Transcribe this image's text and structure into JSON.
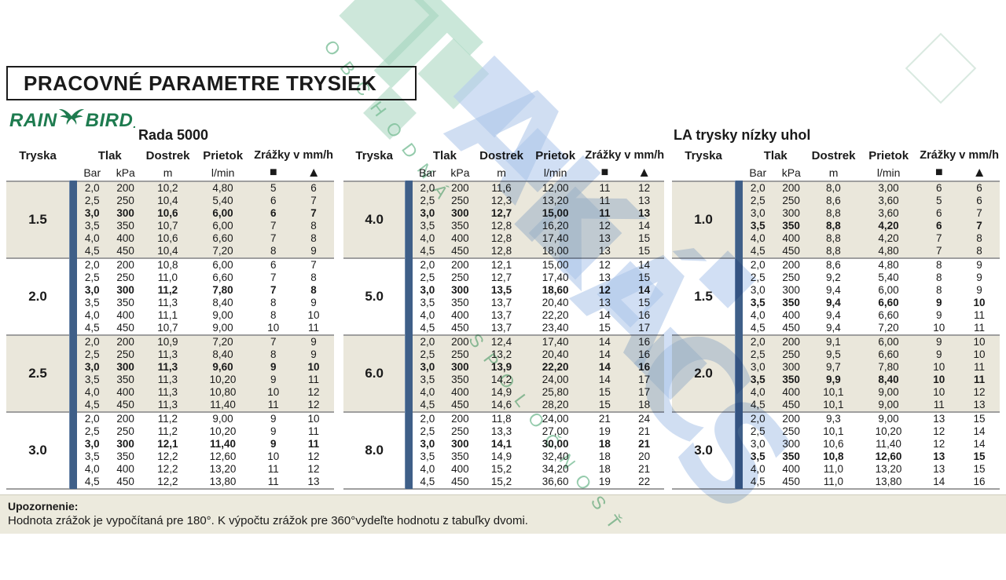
{
  "page": {
    "title": "PRACOVNÉ PARAMETRE TRYSIEK",
    "brand": {
      "word1": "RAIN",
      "word2": "BIRD",
      "dot": ".",
      "color": "#1e7b4f"
    },
    "notice": {
      "label": "Upozornenie:",
      "text": "Hodnota zrážok je vypočítaná pre 180°. K výpočtu zrážok pre 360°vydeľte hodnotu z tabuľky dvomi."
    }
  },
  "columns": {
    "tryska": "Tryska",
    "tlak": "Tlak",
    "bar": "Bar",
    "kpa": "kPa",
    "dostrek": "Dostrek",
    "m": "m",
    "prietok": "Prietok",
    "lmin": "l/min",
    "zrazky": "Zrážky v mm/h",
    "square": "■",
    "triangle": "▲"
  },
  "colors": {
    "stripe": "#3f5f88",
    "group_beige": "#eae7db",
    "separator": "#9f9f9f",
    "notice_bg": "#eceadd",
    "brand_green": "#1e7b4f",
    "watermark_teal": "#aed9c4",
    "watermark_blue": "#b5cbed",
    "watermark_green_text": "#7bbf98"
  },
  "tables": [
    {
      "title": "Rada 5000",
      "groups": [
        {
          "nozzle": "1.5",
          "bold_row": 2,
          "rows": [
            [
              "2,0",
              "200",
              "10,2",
              "4,80",
              "5",
              "6"
            ],
            [
              "2,5",
              "250",
              "10,4",
              "5,40",
              "6",
              "7"
            ],
            [
              "3,0",
              "300",
              "10,6",
              "6,00",
              "6",
              "7"
            ],
            [
              "3,5",
              "350",
              "10,7",
              "6,00",
              "7",
              "8"
            ],
            [
              "4,0",
              "400",
              "10,6",
              "6,60",
              "7",
              "8"
            ],
            [
              "4,5",
              "450",
              "10,4",
              "7,20",
              "8",
              "9"
            ]
          ]
        },
        {
          "nozzle": "2.0",
          "bold_row": 2,
          "rows": [
            [
              "2,0",
              "200",
              "10,8",
              "6,00",
              "6",
              "7"
            ],
            [
              "2,5",
              "250",
              "11,0",
              "6,60",
              "7",
              "8"
            ],
            [
              "3,0",
              "300",
              "11,2",
              "7,80",
              "7",
              "8"
            ],
            [
              "3,5",
              "350",
              "11,3",
              "8,40",
              "8",
              "9"
            ],
            [
              "4,0",
              "400",
              "11,1",
              "9,00",
              "8",
              "10"
            ],
            [
              "4,5",
              "450",
              "10,7",
              "9,00",
              "10",
              "11"
            ]
          ]
        },
        {
          "nozzle": "2.5",
          "bold_row": 2,
          "rows": [
            [
              "2,0",
              "200",
              "10,9",
              "7,20",
              "7",
              "9"
            ],
            [
              "2,5",
              "250",
              "11,3",
              "8,40",
              "8",
              "9"
            ],
            [
              "3,0",
              "300",
              "11,3",
              "9,60",
              "9",
              "10"
            ],
            [
              "3,5",
              "350",
              "11,3",
              "10,20",
              "9",
              "11"
            ],
            [
              "4,0",
              "400",
              "11,3",
              "10,80",
              "10",
              "12"
            ],
            [
              "4,5",
              "450",
              "11,3",
              "11,40",
              "11",
              "12"
            ]
          ]
        },
        {
          "nozzle": "3.0",
          "bold_row": 2,
          "rows": [
            [
              "2,0",
              "200",
              "11,2",
              "9,00",
              "9",
              "10"
            ],
            [
              "2,5",
              "250",
              "11,2",
              "10,20",
              "9",
              "11"
            ],
            [
              "3,0",
              "300",
              "12,1",
              "11,40",
              "9",
              "11"
            ],
            [
              "3,5",
              "350",
              "12,2",
              "12,60",
              "10",
              "12"
            ],
            [
              "4,0",
              "400",
              "12,2",
              "13,20",
              "11",
              "12"
            ],
            [
              "4,5",
              "450",
              "12,2",
              "13,80",
              "11",
              "13"
            ]
          ]
        }
      ]
    },
    {
      "title": "",
      "groups": [
        {
          "nozzle": "4.0",
          "bold_row": 2,
          "rows": [
            [
              "2,0",
              "200",
              "11,6",
              "12,00",
              "11",
              "12"
            ],
            [
              "2,5",
              "250",
              "12,3",
              "13,20",
              "11",
              "13"
            ],
            [
              "3,0",
              "300",
              "12,7",
              "15,00",
              "11",
              "13"
            ],
            [
              "3,5",
              "350",
              "12,8",
              "16,20",
              "12",
              "14"
            ],
            [
              "4,0",
              "400",
              "12,8",
              "17,40",
              "13",
              "15"
            ],
            [
              "4,5",
              "450",
              "12,8",
              "18,00",
              "13",
              "15"
            ]
          ]
        },
        {
          "nozzle": "5.0",
          "bold_row": 2,
          "rows": [
            [
              "2,0",
              "200",
              "12,1",
              "15,00",
              "12",
              "14"
            ],
            [
              "2,5",
              "250",
              "12,7",
              "17,40",
              "13",
              "15"
            ],
            [
              "3,0",
              "300",
              "13,5",
              "18,60",
              "12",
              "14"
            ],
            [
              "3,5",
              "350",
              "13,7",
              "20,40",
              "13",
              "15"
            ],
            [
              "4,0",
              "400",
              "13,7",
              "22,20",
              "14",
              "16"
            ],
            [
              "4,5",
              "450",
              "13,7",
              "23,40",
              "15",
              "17"
            ]
          ]
        },
        {
          "nozzle": "6.0",
          "bold_row": 2,
          "rows": [
            [
              "2,0",
              "200",
              "12,4",
              "17,40",
              "14",
              "16"
            ],
            [
              "2,5",
              "250",
              "13,2",
              "20,40",
              "14",
              "16"
            ],
            [
              "3,0",
              "300",
              "13,9",
              "22,20",
              "14",
              "16"
            ],
            [
              "3,5",
              "350",
              "14,2",
              "24,00",
              "14",
              "17"
            ],
            [
              "4,0",
              "400",
              "14,9",
              "25,80",
              "15",
              "17"
            ],
            [
              "4,5",
              "450",
              "14,6",
              "28,20",
              "15",
              "18"
            ]
          ]
        },
        {
          "nozzle": "8.0",
          "bold_row": 2,
          "rows": [
            [
              "2,0",
              "200",
              "11,8",
              "24,00",
              "21",
              "24"
            ],
            [
              "2,5",
              "250",
              "13,3",
              "27,00",
              "19",
              "21"
            ],
            [
              "3,0",
              "300",
              "14,1",
              "30,00",
              "18",
              "21"
            ],
            [
              "3,5",
              "350",
              "14,9",
              "32,40",
              "18",
              "20"
            ],
            [
              "4,0",
              "400",
              "15,2",
              "34,20",
              "18",
              "21"
            ],
            [
              "4,5",
              "450",
              "15,2",
              "36,60",
              "19",
              "22"
            ]
          ]
        }
      ]
    },
    {
      "title": "LA trysky nízky uhol",
      "groups": [
        {
          "nozzle": "1.0",
          "bold_row": 3,
          "rows": [
            [
              "2,0",
              "200",
              "8,0",
              "3,00",
              "6",
              "6"
            ],
            [
              "2,5",
              "250",
              "8,6",
              "3,60",
              "5",
              "6"
            ],
            [
              "3,0",
              "300",
              "8,8",
              "3,60",
              "6",
              "7"
            ],
            [
              "3,5",
              "350",
              "8,8",
              "4,20",
              "6",
              "7"
            ],
            [
              "4,0",
              "400",
              "8,8",
              "4,20",
              "7",
              "8"
            ],
            [
              "4,5",
              "450",
              "8,8",
              "4,80",
              "7",
              "8"
            ]
          ]
        },
        {
          "nozzle": "1.5",
          "bold_row": 3,
          "rows": [
            [
              "2,0",
              "200",
              "8,6",
              "4,80",
              "8",
              "9"
            ],
            [
              "2,5",
              "250",
              "9,2",
              "5,40",
              "8",
              "9"
            ],
            [
              "3,0",
              "300",
              "9,4",
              "6,00",
              "8",
              "9"
            ],
            [
              "3,5",
              "350",
              "9,4",
              "6,60",
              "9",
              "10"
            ],
            [
              "4,0",
              "400",
              "9,4",
              "6,60",
              "9",
              "11"
            ],
            [
              "4,5",
              "450",
              "9,4",
              "7,20",
              "10",
              "11"
            ]
          ]
        },
        {
          "nozzle": "2.0",
          "bold_row": 3,
          "rows": [
            [
              "2,0",
              "200",
              "9,1",
              "6,00",
              "9",
              "10"
            ],
            [
              "2,5",
              "250",
              "9,5",
              "6,60",
              "9",
              "10"
            ],
            [
              "3,0",
              "300",
              "9,7",
              "7,80",
              "10",
              "11"
            ],
            [
              "3,5",
              "350",
              "9,9",
              "8,40",
              "10",
              "11"
            ],
            [
              "4,0",
              "400",
              "10,1",
              "9,00",
              "10",
              "12"
            ],
            [
              "4,5",
              "450",
              "10,1",
              "9,00",
              "11",
              "13"
            ]
          ]
        },
        {
          "nozzle": "3.0",
          "bold_row": 3,
          "rows": [
            [
              "2,0",
              "200",
              "9,3",
              "9,00",
              "13",
              "15"
            ],
            [
              "2,5",
              "250",
              "10,1",
              "10,20",
              "12",
              "14"
            ],
            [
              "3,0",
              "300",
              "10,6",
              "11,40",
              "12",
              "14"
            ],
            [
              "3,5",
              "350",
              "10,8",
              "12,60",
              "13",
              "15"
            ],
            [
              "4,0",
              "400",
              "11,0",
              "13,20",
              "13",
              "15"
            ],
            [
              "4,5",
              "450",
              "11,0",
              "13,80",
              "14",
              "16"
            ]
          ]
        }
      ]
    }
  ],
  "watermark": {
    "company_letters": [
      "T",
      "A",
      "K",
      "Á",
      "C",
      "S"
    ],
    "tagline_top": "OBCHODNÁ",
    "tagline_bottom": "SPOLOČNOSŤ"
  }
}
